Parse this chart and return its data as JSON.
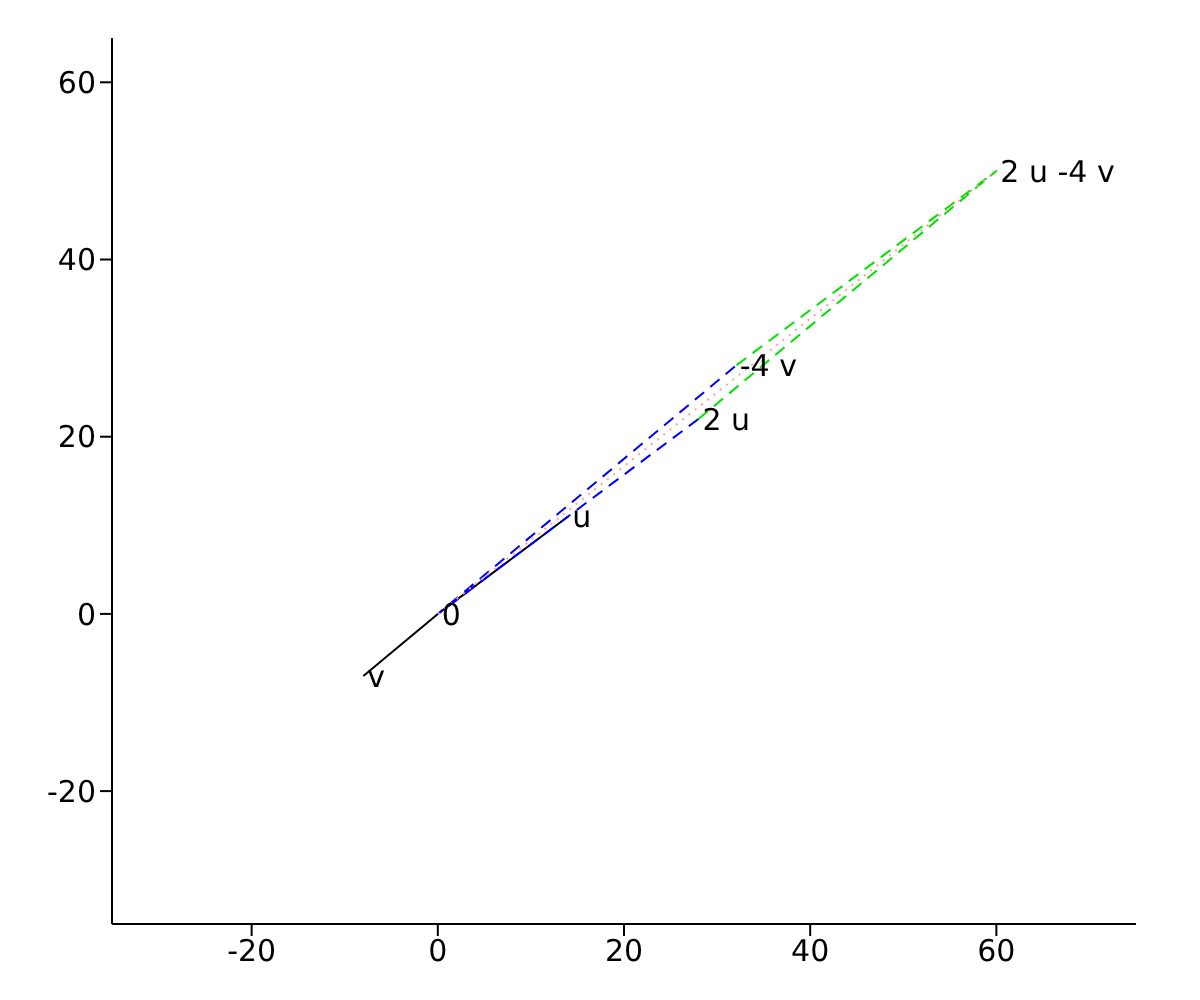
{
  "chart_data": {
    "type": "line",
    "xlim": [
      -35,
      75
    ],
    "xticks": [
      -20,
      0,
      20,
      40,
      60
    ],
    "ylim": [
      -35,
      65
    ],
    "yticks": [
      -20,
      0,
      20,
      40,
      60
    ],
    "grid": false,
    "legend": false,
    "marker": "none",
    "series": [
      {
        "color": "#000000",
        "line_style": "solid",
        "x": [
          14,
          0,
          -8
        ],
        "values": [
          11,
          0,
          -7
        ]
      },
      {
        "color": "#0000ff",
        "line_style": "dashed",
        "x": [
          28,
          0,
          32
        ],
        "values": [
          22,
          0,
          28
        ]
      },
      {
        "color": "#00e000",
        "line_style": "dashed",
        "x": [
          28,
          60,
          32
        ],
        "values": [
          22,
          50,
          28
        ]
      },
      {
        "color": "#ffa0a0",
        "line_style": "dotted",
        "x": [
          0,
          60
        ],
        "values": [
          0,
          50
        ]
      }
    ],
    "annotations": [
      {
        "text": "0",
        "x": 0,
        "y": 0
      },
      {
        "text": "u",
        "x": 14,
        "y": 11
      },
      {
        "text": "v",
        "x": -8,
        "y": -7
      },
      {
        "text": "2 u",
        "x": 28,
        "y": 22
      },
      {
        "text": "-4 v",
        "x": 32,
        "y": 28
      },
      {
        "text": "2 u -4 v",
        "x": 60,
        "y": 50
      }
    ]
  }
}
